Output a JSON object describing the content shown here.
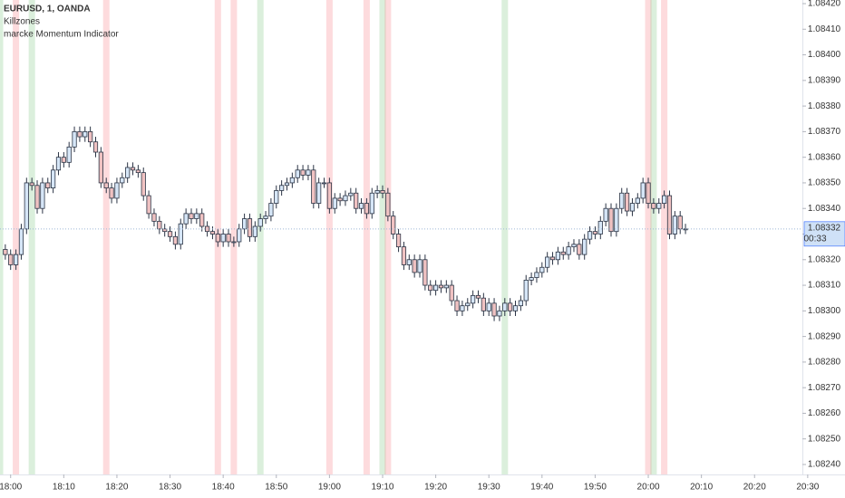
{
  "chart_data": {
    "type": "candlestick",
    "legend": [
      "EURUSD, 1, OANDA",
      "Killzones",
      "marcke Momentum Indicator"
    ],
    "x": [
      "17:59",
      "18:00",
      "18:01",
      "18:02",
      "18:03",
      "18:04",
      "18:05",
      "18:06",
      "18:07",
      "18:08",
      "18:09",
      "18:10",
      "18:11",
      "18:12",
      "18:13",
      "18:14",
      "18:15",
      "18:16",
      "18:17",
      "18:18",
      "18:19",
      "18:20",
      "18:21",
      "18:22",
      "18:23",
      "18:24",
      "18:25",
      "18:26",
      "18:27",
      "18:28",
      "18:29",
      "18:30",
      "18:31",
      "18:32",
      "18:33",
      "18:34",
      "18:35",
      "18:36",
      "18:37",
      "18:38",
      "18:39",
      "18:40",
      "18:41",
      "18:42",
      "18:43",
      "18:44",
      "18:45",
      "18:46",
      "18:47",
      "18:48",
      "18:49",
      "18:50",
      "18:51",
      "18:52",
      "18:53",
      "18:54",
      "18:55",
      "18:56",
      "18:57",
      "18:58",
      "18:59",
      "19:00",
      "19:01",
      "19:02",
      "19:03",
      "19:04",
      "19:05",
      "19:06",
      "19:07",
      "19:08",
      "19:09",
      "19:10",
      "19:11",
      "19:12",
      "19:13",
      "19:14",
      "19:15",
      "19:16",
      "19:17",
      "19:18",
      "19:19",
      "19:20",
      "19:21",
      "19:22",
      "19:23",
      "19:24",
      "19:25",
      "19:26",
      "19:27",
      "19:28",
      "19:29",
      "19:30",
      "19:31",
      "19:32",
      "19:33",
      "19:34",
      "19:35",
      "19:36",
      "19:37",
      "19:38",
      "19:39",
      "19:40",
      "19:41",
      "19:42",
      "19:43",
      "19:44",
      "19:45",
      "19:46",
      "19:47",
      "19:48",
      "19:49",
      "19:50",
      "19:51",
      "19:52",
      "19:53",
      "19:54",
      "19:55",
      "19:56",
      "19:57",
      "19:58",
      "19:59",
      "20:00",
      "20:01",
      "20:02",
      "20:03",
      "20:04",
      "20:05",
      "20:06",
      "20:07"
    ],
    "open": [
      1.08324,
      1.08322,
      1.08318,
      1.08322,
      1.08332,
      1.0835,
      1.08349,
      1.0834,
      1.0835,
      1.08348,
      1.08355,
      1.0836,
      1.08358,
      1.08364,
      1.0837,
      1.08368,
      1.0837,
      1.08366,
      1.08362,
      1.0835,
      1.08348,
      1.08344,
      1.0835,
      1.08352,
      1.08356,
      1.08355,
      1.08354,
      1.08345,
      1.08338,
      1.08335,
      1.08332,
      1.08331,
      1.08329,
      1.08326,
      1.08334,
      1.08338,
      1.08336,
      1.08338,
      1.08333,
      1.08331,
      1.0833,
      1.08327,
      1.0833,
      1.08327,
      1.08327,
      1.08332,
      1.08336,
      1.08329,
      1.08333,
      1.08336,
      1.08337,
      1.08342,
      1.08347,
      1.08349,
      1.0835,
      1.08352,
      1.08355,
      1.08353,
      1.08355,
      1.08342,
      1.0835,
      1.0835,
      1.0834,
      1.08344,
      1.08343,
      1.08345,
      1.08346,
      1.0834,
      1.08342,
      1.08338,
      1.08346,
      1.08347,
      1.08346,
      1.08337,
      1.0833,
      1.08325,
      1.08318,
      1.0832,
      1.08315,
      1.0832,
      1.0831,
      1.08308,
      1.0831,
      1.08309,
      1.0831,
      1.08304,
      1.083,
      1.08302,
      1.08303,
      1.08306,
      1.08305,
      1.083,
      1.08303,
      1.08298,
      1.083,
      1.08303,
      1.083,
      1.08302,
      1.08304,
      1.08312,
      1.08313,
      1.08315,
      1.08317,
      1.08321,
      1.0832,
      1.08323,
      1.08322,
      1.08325,
      1.08326,
      1.08322,
      1.08328,
      1.08331,
      1.0833,
      1.08335,
      1.0834,
      1.08331,
      1.0834,
      1.08346,
      1.08339,
      1.08342,
      1.08344,
      1.0835,
      1.08342,
      1.0834,
      1.08342,
      1.08345,
      1.0833,
      1.08337,
      1.08332
    ],
    "high": [
      1.08326,
      1.08324,
      1.08324,
      1.08334,
      1.08352,
      1.08352,
      1.08351,
      1.08352,
      1.08352,
      1.08357,
      1.08362,
      1.08362,
      1.08366,
      1.08372,
      1.08372,
      1.08372,
      1.08372,
      1.08368,
      1.08364,
      1.08352,
      1.0835,
      1.08352,
      1.08354,
      1.08358,
      1.08358,
      1.08357,
      1.08356,
      1.08347,
      1.0834,
      1.08337,
      1.08334,
      1.08333,
      1.08331,
      1.08336,
      1.0834,
      1.0834,
      1.0834,
      1.0834,
      1.08335,
      1.08333,
      1.08332,
      1.08332,
      1.08332,
      1.08329,
      1.08334,
      1.08338,
      1.08338,
      1.08335,
      1.08338,
      1.08339,
      1.08344,
      1.08349,
      1.08351,
      1.08352,
      1.08354,
      1.08357,
      1.08357,
      1.08357,
      1.08357,
      1.08352,
      1.08352,
      1.08352,
      1.08346,
      1.08346,
      1.08347,
      1.08348,
      1.08348,
      1.08344,
      1.08344,
      1.08348,
      1.08349,
      1.08349,
      1.08348,
      1.08339,
      1.08332,
      1.08327,
      1.08322,
      1.08322,
      1.08322,
      1.08322,
      1.08312,
      1.08312,
      1.08312,
      1.08312,
      1.08312,
      1.08306,
      1.08304,
      1.08305,
      1.08308,
      1.08308,
      1.08307,
      1.08305,
      1.08305,
      1.08302,
      1.08305,
      1.08305,
      1.08304,
      1.08306,
      1.08314,
      1.08315,
      1.08317,
      1.08319,
      1.08323,
      1.08323,
      1.08325,
      1.08325,
      1.08327,
      1.08328,
      1.08328,
      1.0833,
      1.08333,
      1.08333,
      1.08337,
      1.08342,
      1.08342,
      1.08342,
      1.08348,
      1.08348,
      1.08344,
      1.08346,
      1.08352,
      1.08352,
      1.08344,
      1.08344,
      1.08347,
      1.08347,
      1.08339,
      1.08339,
      1.08334
    ],
    "low": [
      1.0832,
      1.08316,
      1.08316,
      1.0832,
      1.0833,
      1.08347,
      1.08338,
      1.08338,
      1.08346,
      1.08346,
      1.08353,
      1.08356,
      1.08356,
      1.08362,
      1.08366,
      1.08366,
      1.08364,
      1.0836,
      1.08348,
      1.08346,
      1.08342,
      1.08342,
      1.08348,
      1.0835,
      1.08353,
      1.08352,
      1.08343,
      1.08336,
      1.08333,
      1.0833,
      1.08329,
      1.08327,
      1.08324,
      1.08324,
      1.08332,
      1.08334,
      1.08334,
      1.08331,
      1.08329,
      1.08328,
      1.08325,
      1.08325,
      1.08325,
      1.08325,
      1.08325,
      1.0833,
      1.08327,
      1.08327,
      1.08331,
      1.08334,
      1.08335,
      1.0834,
      1.08345,
      1.08347,
      1.08348,
      1.0835,
      1.08351,
      1.08351,
      1.0834,
      1.0834,
      1.08348,
      1.08338,
      1.08338,
      1.08341,
      1.08341,
      1.08343,
      1.08338,
      1.08338,
      1.08336,
      1.08336,
      1.08344,
      1.08344,
      1.08335,
      1.08328,
      1.08323,
      1.08316,
      1.08316,
      1.08313,
      1.08313,
      1.08308,
      1.08306,
      1.08306,
      1.08307,
      1.08307,
      1.08302,
      1.08298,
      1.08298,
      1.083,
      1.08301,
      1.08303,
      1.08298,
      1.08298,
      1.08296,
      1.08296,
      1.08298,
      1.08298,
      1.08298,
      1.083,
      1.08302,
      1.0831,
      1.08311,
      1.08313,
      1.08315,
      1.08318,
      1.08318,
      1.0832,
      1.0832,
      1.08323,
      1.0832,
      1.0832,
      1.08326,
      1.08328,
      1.08328,
      1.08333,
      1.08329,
      1.08329,
      1.08338,
      1.08337,
      1.08337,
      1.0834,
      1.08342,
      1.0834,
      1.08338,
      1.08338,
      1.0834,
      1.08328,
      1.08328,
      1.0833,
      1.0833
    ],
    "close": [
      1.08322,
      1.08318,
      1.08322,
      1.08332,
      1.0835,
      1.08349,
      1.0834,
      1.0835,
      1.08348,
      1.08355,
      1.0836,
      1.08358,
      1.08364,
      1.0837,
      1.08368,
      1.0837,
      1.08366,
      1.08362,
      1.0835,
      1.08348,
      1.08344,
      1.0835,
      1.08352,
      1.08356,
      1.08355,
      1.08354,
      1.08345,
      1.08338,
      1.08335,
      1.08332,
      1.08331,
      1.08329,
      1.08326,
      1.08334,
      1.08338,
      1.08336,
      1.08338,
      1.08333,
      1.08331,
      1.0833,
      1.08327,
      1.0833,
      1.08327,
      1.08327,
      1.08332,
      1.08336,
      1.08329,
      1.08333,
      1.08336,
      1.08337,
      1.08342,
      1.08347,
      1.08349,
      1.0835,
      1.08352,
      1.08355,
      1.08353,
      1.08355,
      1.08342,
      1.0835,
      1.0835,
      1.0834,
      1.08344,
      1.08343,
      1.08345,
      1.08346,
      1.0834,
      1.08342,
      1.08338,
      1.08346,
      1.08347,
      1.08346,
      1.08337,
      1.0833,
      1.08325,
      1.08318,
      1.0832,
      1.08315,
      1.0832,
      1.0831,
      1.08308,
      1.0831,
      1.08309,
      1.0831,
      1.08304,
      1.083,
      1.08302,
      1.08303,
      1.08306,
      1.08305,
      1.083,
      1.08303,
      1.08298,
      1.083,
      1.08303,
      1.083,
      1.08302,
      1.08304,
      1.08312,
      1.08313,
      1.08315,
      1.08317,
      1.08321,
      1.0832,
      1.08323,
      1.08322,
      1.08325,
      1.08326,
      1.08322,
      1.08328,
      1.08331,
      1.0833,
      1.08335,
      1.0834,
      1.08331,
      1.0834,
      1.08346,
      1.08339,
      1.08342,
      1.08344,
      1.0835,
      1.08342,
      1.0834,
      1.08342,
      1.08345,
      1.0833,
      1.08337,
      1.08332,
      1.08332
    ],
    "up_color": "#d6e6f7",
    "down_color": "#f0c2c2",
    "border_color": "#2b3445",
    "killzones": [
      {
        "time": "17:58",
        "color": "rgba(76,175,80,0.2)"
      },
      {
        "time": "18:01",
        "color": "rgba(242,54,69,0.18)"
      },
      {
        "time": "18:04",
        "color": "rgba(76,175,80,0.2)"
      },
      {
        "time": "18:18",
        "color": "rgba(242,54,69,0.18)"
      },
      {
        "time": "18:39",
        "color": "rgba(242,54,69,0.18)"
      },
      {
        "time": "18:42",
        "color": "rgba(242,54,69,0.18)"
      },
      {
        "time": "18:47",
        "color": "rgba(76,175,80,0.2)"
      },
      {
        "time": "19:00",
        "color": "rgba(242,54,69,0.18)"
      },
      {
        "time": "19:07",
        "color": "rgba(242,54,69,0.18)"
      },
      {
        "time": "19:10",
        "color": "rgba(76,175,80,0.2)"
      },
      {
        "time": "19:11",
        "color": "rgba(242,54,69,0.18)"
      },
      {
        "time": "19:33",
        "color": "rgba(76,175,80,0.2)"
      },
      {
        "time": "20:00",
        "color": "rgba(242,54,69,0.18)"
      },
      {
        "time": "20:01",
        "color": "rgba(76,175,80,0.2)"
      },
      {
        "time": "20:03",
        "color": "rgba(242,54,69,0.18)"
      }
    ],
    "xlim": [
      "17:58",
      "20:29"
    ],
    "xticks": [
      "18:00",
      "18:10",
      "18:20",
      "18:30",
      "18:40",
      "18:50",
      "19:00",
      "19:10",
      "19:20",
      "19:30",
      "19:40",
      "19:50",
      "20:00",
      "20:10",
      "20:20",
      "20:30"
    ],
    "ylim": [
      1.0824,
      1.0842
    ],
    "yticks": [
      {
        "value": 1.0824,
        "label": "1.08240"
      },
      {
        "value": 1.0825,
        "label": "1.08250"
      },
      {
        "value": 1.0826,
        "label": "1.08260"
      },
      {
        "value": 1.0827,
        "label": "1.08270"
      },
      {
        "value": 1.0828,
        "label": "1.08280"
      },
      {
        "value": 1.0829,
        "label": "1.08290"
      },
      {
        "value": 1.083,
        "label": "1.08300"
      },
      {
        "value": 1.0831,
        "label": "1.08310"
      },
      {
        "value": 1.0832,
        "label": "1.08320"
      },
      {
        "value": 1.0833,
        "label": "1.08330"
      },
      {
        "value": 1.0834,
        "label": "1.08340"
      },
      {
        "value": 1.0835,
        "label": "1.08350"
      },
      {
        "value": 1.0836,
        "label": "1.08360"
      },
      {
        "value": 1.0837,
        "label": "1.08370"
      },
      {
        "value": 1.0838,
        "label": "1.08380"
      },
      {
        "value": 1.0839,
        "label": "1.08390"
      },
      {
        "value": 1.084,
        "label": "1.08400"
      },
      {
        "value": 1.0841,
        "label": "1.08410"
      },
      {
        "value": 1.0842,
        "label": "1.08420"
      }
    ],
    "last_price": 1.08332,
    "countdown": "00:33",
    "grid": false
  }
}
